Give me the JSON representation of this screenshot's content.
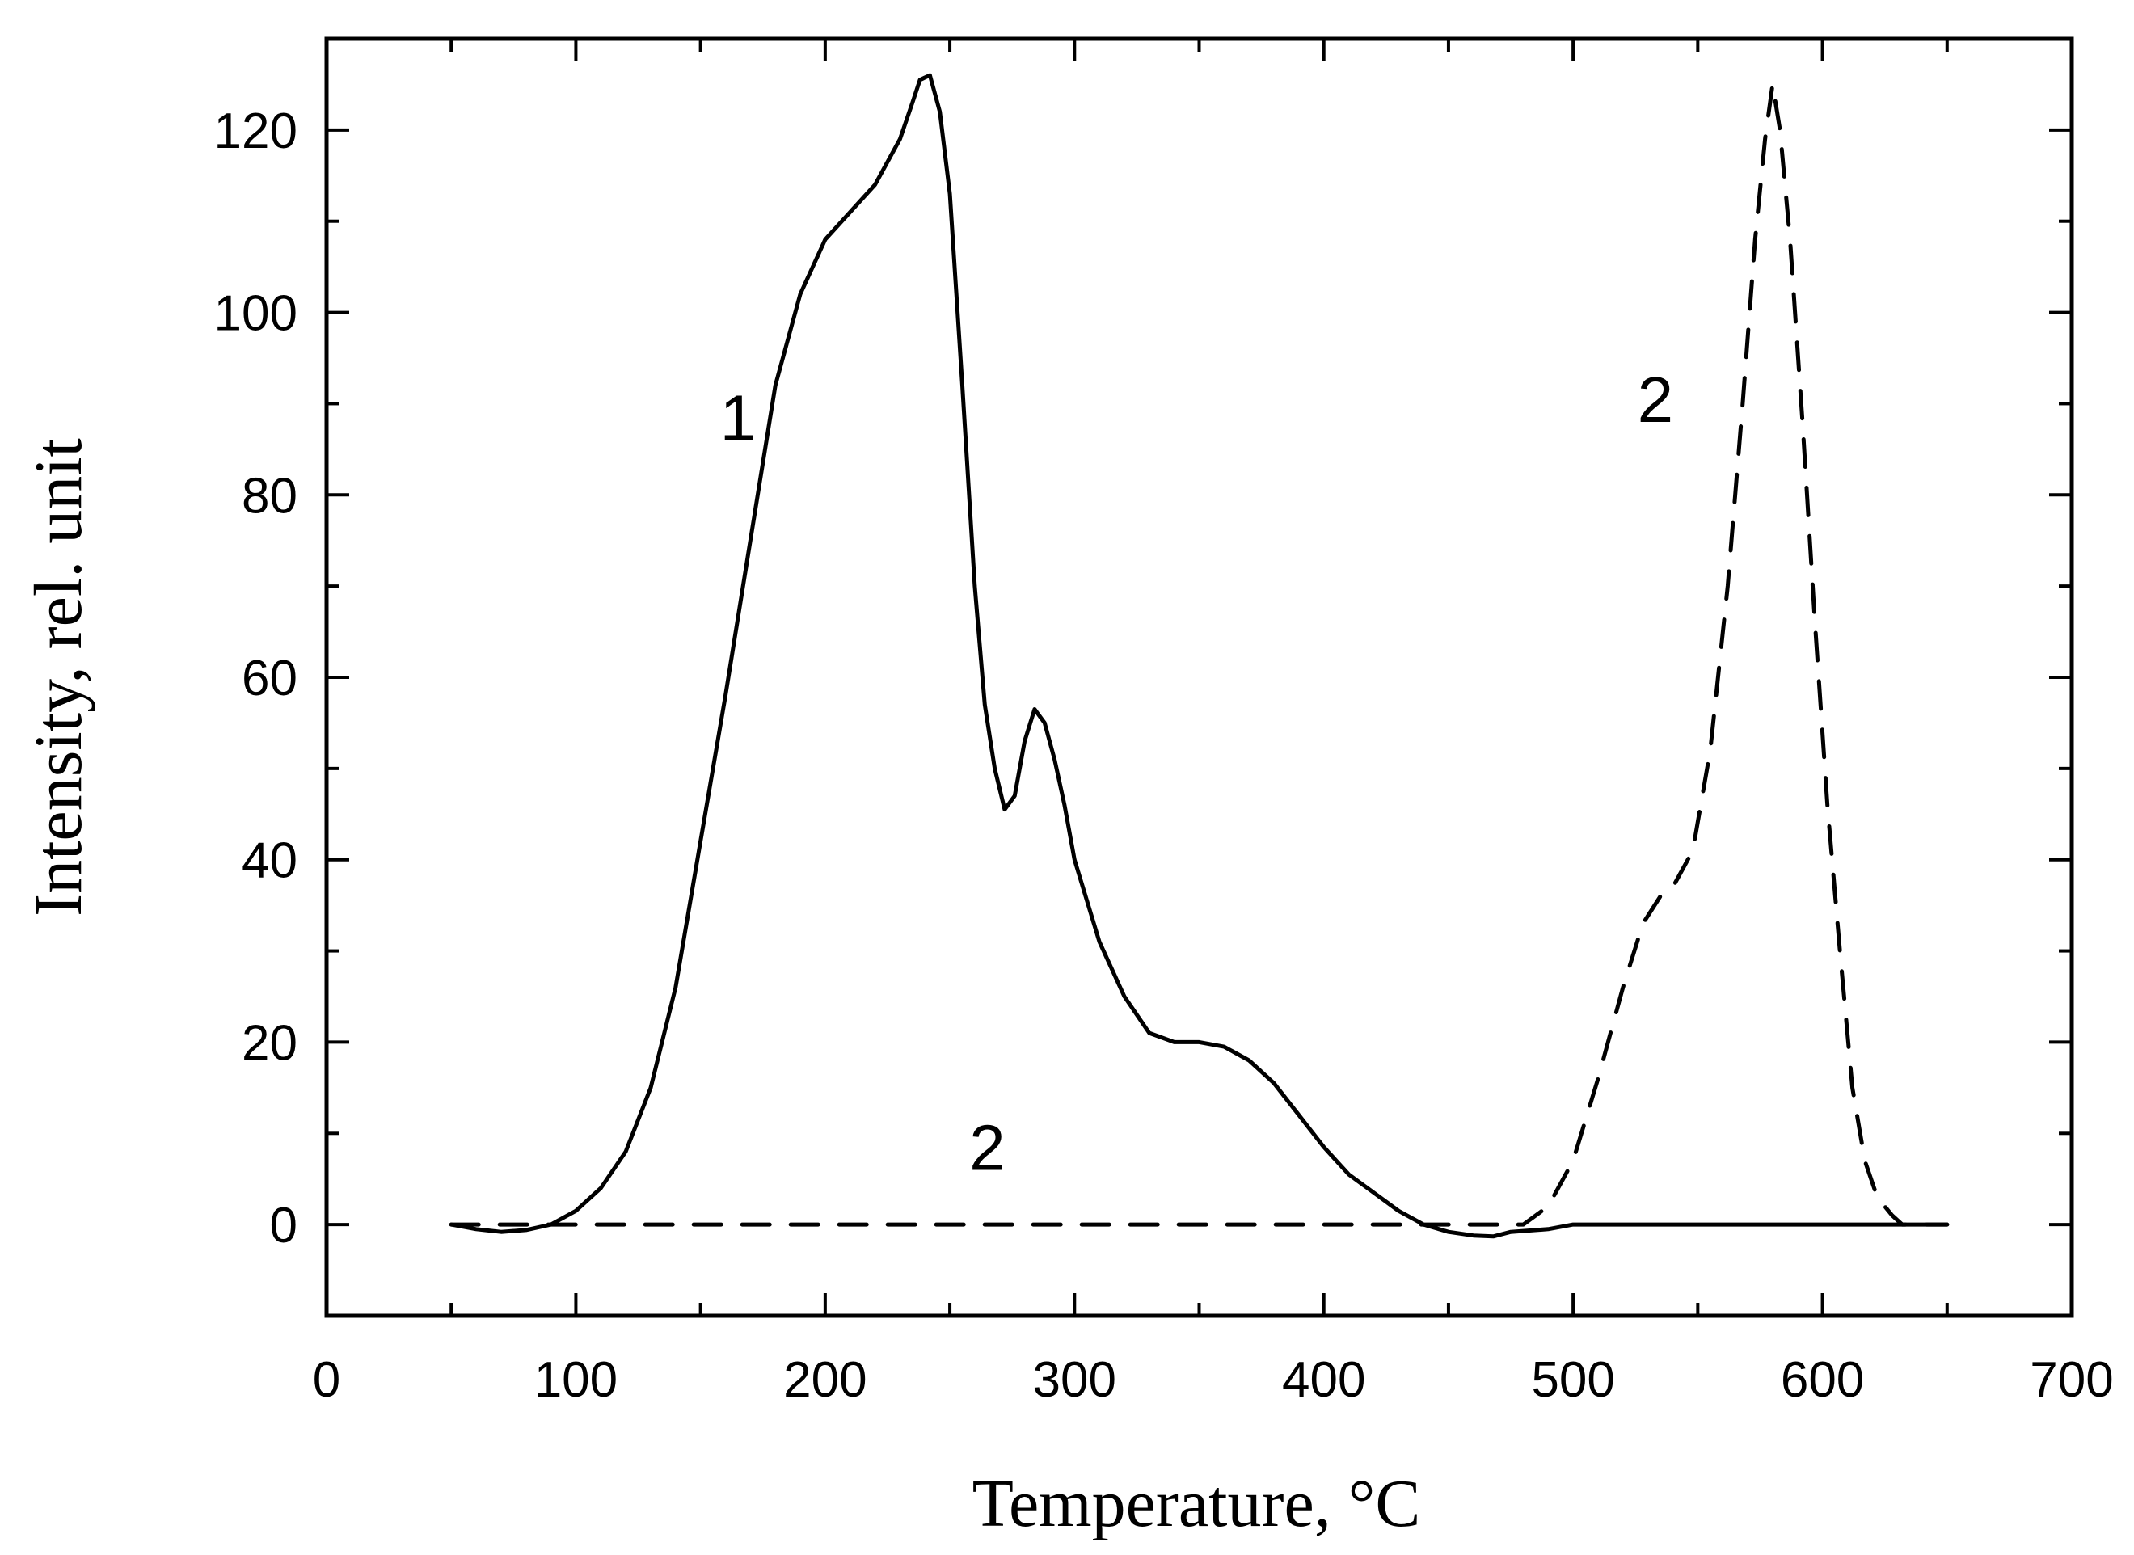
{
  "chart_data": {
    "type": "line",
    "title": "",
    "xlabel": "Temperature, °C",
    "ylabel": "Intensity, rel. unit",
    "xlim": [
      0,
      700
    ],
    "ylim": [
      -10,
      130
    ],
    "xticks": [
      0,
      100,
      200,
      300,
      400,
      500,
      600,
      700
    ],
    "yticks": [
      0,
      20,
      40,
      60,
      80,
      100,
      120
    ],
    "grid": false,
    "legend": "none",
    "series": [
      {
        "label": "1",
        "style": "solid",
        "color": "#000000",
        "points": [
          [
            50,
            0
          ],
          [
            60,
            -0.5
          ],
          [
            70,
            -0.8
          ],
          [
            80,
            -0.6
          ],
          [
            90,
            0
          ],
          [
            100,
            1.5
          ],
          [
            110,
            4
          ],
          [
            120,
            8
          ],
          [
            130,
            15
          ],
          [
            140,
            26
          ],
          [
            150,
            42
          ],
          [
            160,
            58
          ],
          [
            170,
            75
          ],
          [
            180,
            92
          ],
          [
            190,
            102
          ],
          [
            200,
            108
          ],
          [
            210,
            111
          ],
          [
            220,
            114
          ],
          [
            230,
            119
          ],
          [
            235,
            123
          ],
          [
            238,
            125.5
          ],
          [
            242,
            126
          ],
          [
            246,
            122
          ],
          [
            250,
            113
          ],
          [
            255,
            92
          ],
          [
            260,
            70
          ],
          [
            264,
            57
          ],
          [
            268,
            50
          ],
          [
            272,
            45.5
          ],
          [
            276,
            47
          ],
          [
            280,
            53
          ],
          [
            284,
            56.5
          ],
          [
            288,
            55
          ],
          [
            292,
            51
          ],
          [
            296,
            46
          ],
          [
            300,
            40
          ],
          [
            310,
            31
          ],
          [
            320,
            25
          ],
          [
            330,
            21
          ],
          [
            340,
            20
          ],
          [
            350,
            20
          ],
          [
            360,
            19.5
          ],
          [
            370,
            18
          ],
          [
            380,
            15.5
          ],
          [
            390,
            12
          ],
          [
            400,
            8.5
          ],
          [
            410,
            5.5
          ],
          [
            420,
            3.5
          ],
          [
            430,
            1.5
          ],
          [
            440,
            0
          ],
          [
            450,
            -0.8
          ],
          [
            460,
            -1.2
          ],
          [
            468,
            -1.3
          ],
          [
            475,
            -0.8
          ],
          [
            490,
            -0.5
          ],
          [
            500,
            0
          ],
          [
            520,
            0
          ],
          [
            550,
            0
          ],
          [
            600,
            0
          ],
          [
            650,
            0
          ]
        ]
      },
      {
        "label": "2",
        "style": "dashed",
        "color": "#000000",
        "points": [
          [
            50,
            0
          ],
          [
            100,
            0
          ],
          [
            200,
            0
          ],
          [
            300,
            0
          ],
          [
            400,
            0
          ],
          [
            440,
            0
          ],
          [
            480,
            0
          ],
          [
            490,
            2
          ],
          [
            500,
            7
          ],
          [
            510,
            16
          ],
          [
            520,
            26
          ],
          [
            528,
            33
          ],
          [
            535,
            36
          ],
          [
            540,
            37
          ],
          [
            548,
            41
          ],
          [
            555,
            52
          ],
          [
            562,
            70
          ],
          [
            568,
            90
          ],
          [
            573,
            108
          ],
          [
            577,
            119
          ],
          [
            580,
            125
          ],
          [
            583,
            120
          ],
          [
            587,
            108
          ],
          [
            592,
            88
          ],
          [
            597,
            66
          ],
          [
            602,
            46
          ],
          [
            607,
            30
          ],
          [
            612,
            15
          ],
          [
            617,
            7
          ],
          [
            622,
            3
          ],
          [
            628,
            1
          ],
          [
            632,
            0
          ],
          [
            650,
            0
          ]
        ]
      }
    ],
    "annotations": [
      {
        "text": "1",
        "x": 165,
        "y": 86
      },
      {
        "text": "2",
        "x": 533,
        "y": 88
      },
      {
        "text": "2",
        "x": 265,
        "y": 6
      }
    ]
  }
}
